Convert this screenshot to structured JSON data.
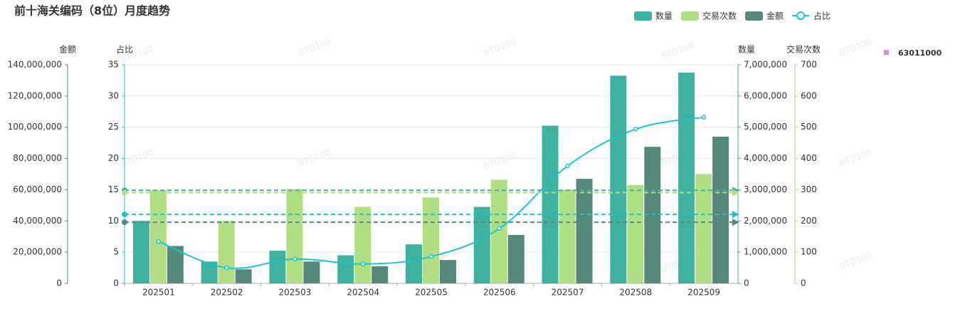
{
  "chart_data": {
    "type": "bar",
    "title": "前十海关编码（8位）月度趋势",
    "watermark": "BTD100",
    "filter_label": "63011000",
    "filter_color": "#d98fd0",
    "categories": [
      "202501",
      "202502",
      "202503",
      "202504",
      "202505",
      "202506",
      "202507",
      "202508",
      "202509"
    ],
    "grid": true,
    "y_axes": [
      {
        "title": "金额",
        "color": "#55897b",
        "label_color": "#3a9c8c",
        "side": "left",
        "lim": [
          0,
          140000000
        ],
        "ticks": [
          0,
          {
            "value": 20000000,
            "label": "20,000,000"
          },
          {
            "value": 40000000,
            "label": "40,000,000"
          },
          {
            "value": 60000000,
            "label": "60,000,000"
          },
          {
            "value": 80000000,
            "label": "80,000,000"
          },
          {
            "value": 100000000,
            "label": "100,000,000"
          },
          {
            "value": 120000000,
            "label": "120,000,000"
          },
          {
            "value": 140000000,
            "label": "140,000,000"
          }
        ]
      },
      {
        "title": "占比",
        "color": "#1cc6c6",
        "label_color": "#1cc6c6",
        "side": "left",
        "lim": [
          0,
          35
        ],
        "ticks": [
          0,
          5,
          10,
          15,
          20,
          25,
          30,
          35
        ]
      },
      {
        "title": "数量",
        "color": "#3fb1a0",
        "label_color": "#3a9c8c",
        "side": "right",
        "lim": [
          0,
          7000000
        ],
        "ticks": [
          0,
          {
            "value": 1000000,
            "label": "1,000,000"
          },
          {
            "value": 2000000,
            "label": "2,000,000"
          },
          {
            "value": 3000000,
            "label": "3,000,000"
          },
          {
            "value": 4000000,
            "label": "4,000,000"
          },
          {
            "value": 5000000,
            "label": "5,000,000"
          },
          {
            "value": 6000000,
            "label": "6,000,000"
          },
          {
            "value": 7000000,
            "label": "7,000,000"
          }
        ]
      },
      {
        "title": "交易次数",
        "color": "#b0de83",
        "label_color": "#9fd16b",
        "side": "right",
        "lim": [
          0,
          700
        ],
        "ticks": [
          0,
          100,
          200,
          300,
          400,
          500,
          600,
          700
        ]
      }
    ],
    "series": [
      {
        "name": "数量",
        "type": "bar",
        "axis": 2,
        "color": "#3fb1a0",
        "mark_line": "average",
        "values": [
          2000000,
          700000,
          1050000,
          900000,
          1250000,
          2450000,
          5050000,
          6650000,
          6750000
        ]
      },
      {
        "name": "交易次数",
        "type": "bar",
        "axis": 3,
        "color": "#b0de83",
        "mark_line": "average",
        "values": [
          298,
          200,
          302,
          245,
          275,
          332,
          300,
          315,
          350
        ]
      },
      {
        "name": "金额",
        "type": "bar",
        "axis": 0,
        "color": "#55897b",
        "mark_line": "average",
        "values": [
          24000000,
          9000000,
          14000000,
          11000000,
          15000000,
          31000000,
          67000000,
          87500000,
          94000000
        ]
      },
      {
        "name": "占比",
        "type": "line",
        "axis": 1,
        "color": "#1cc6c6",
        "mark_line": "average",
        "values": [
          6.7,
          2.5,
          3.9,
          3.1,
          4.3,
          8.8,
          18.8,
          24.7,
          26.6
        ]
      }
    ]
  }
}
